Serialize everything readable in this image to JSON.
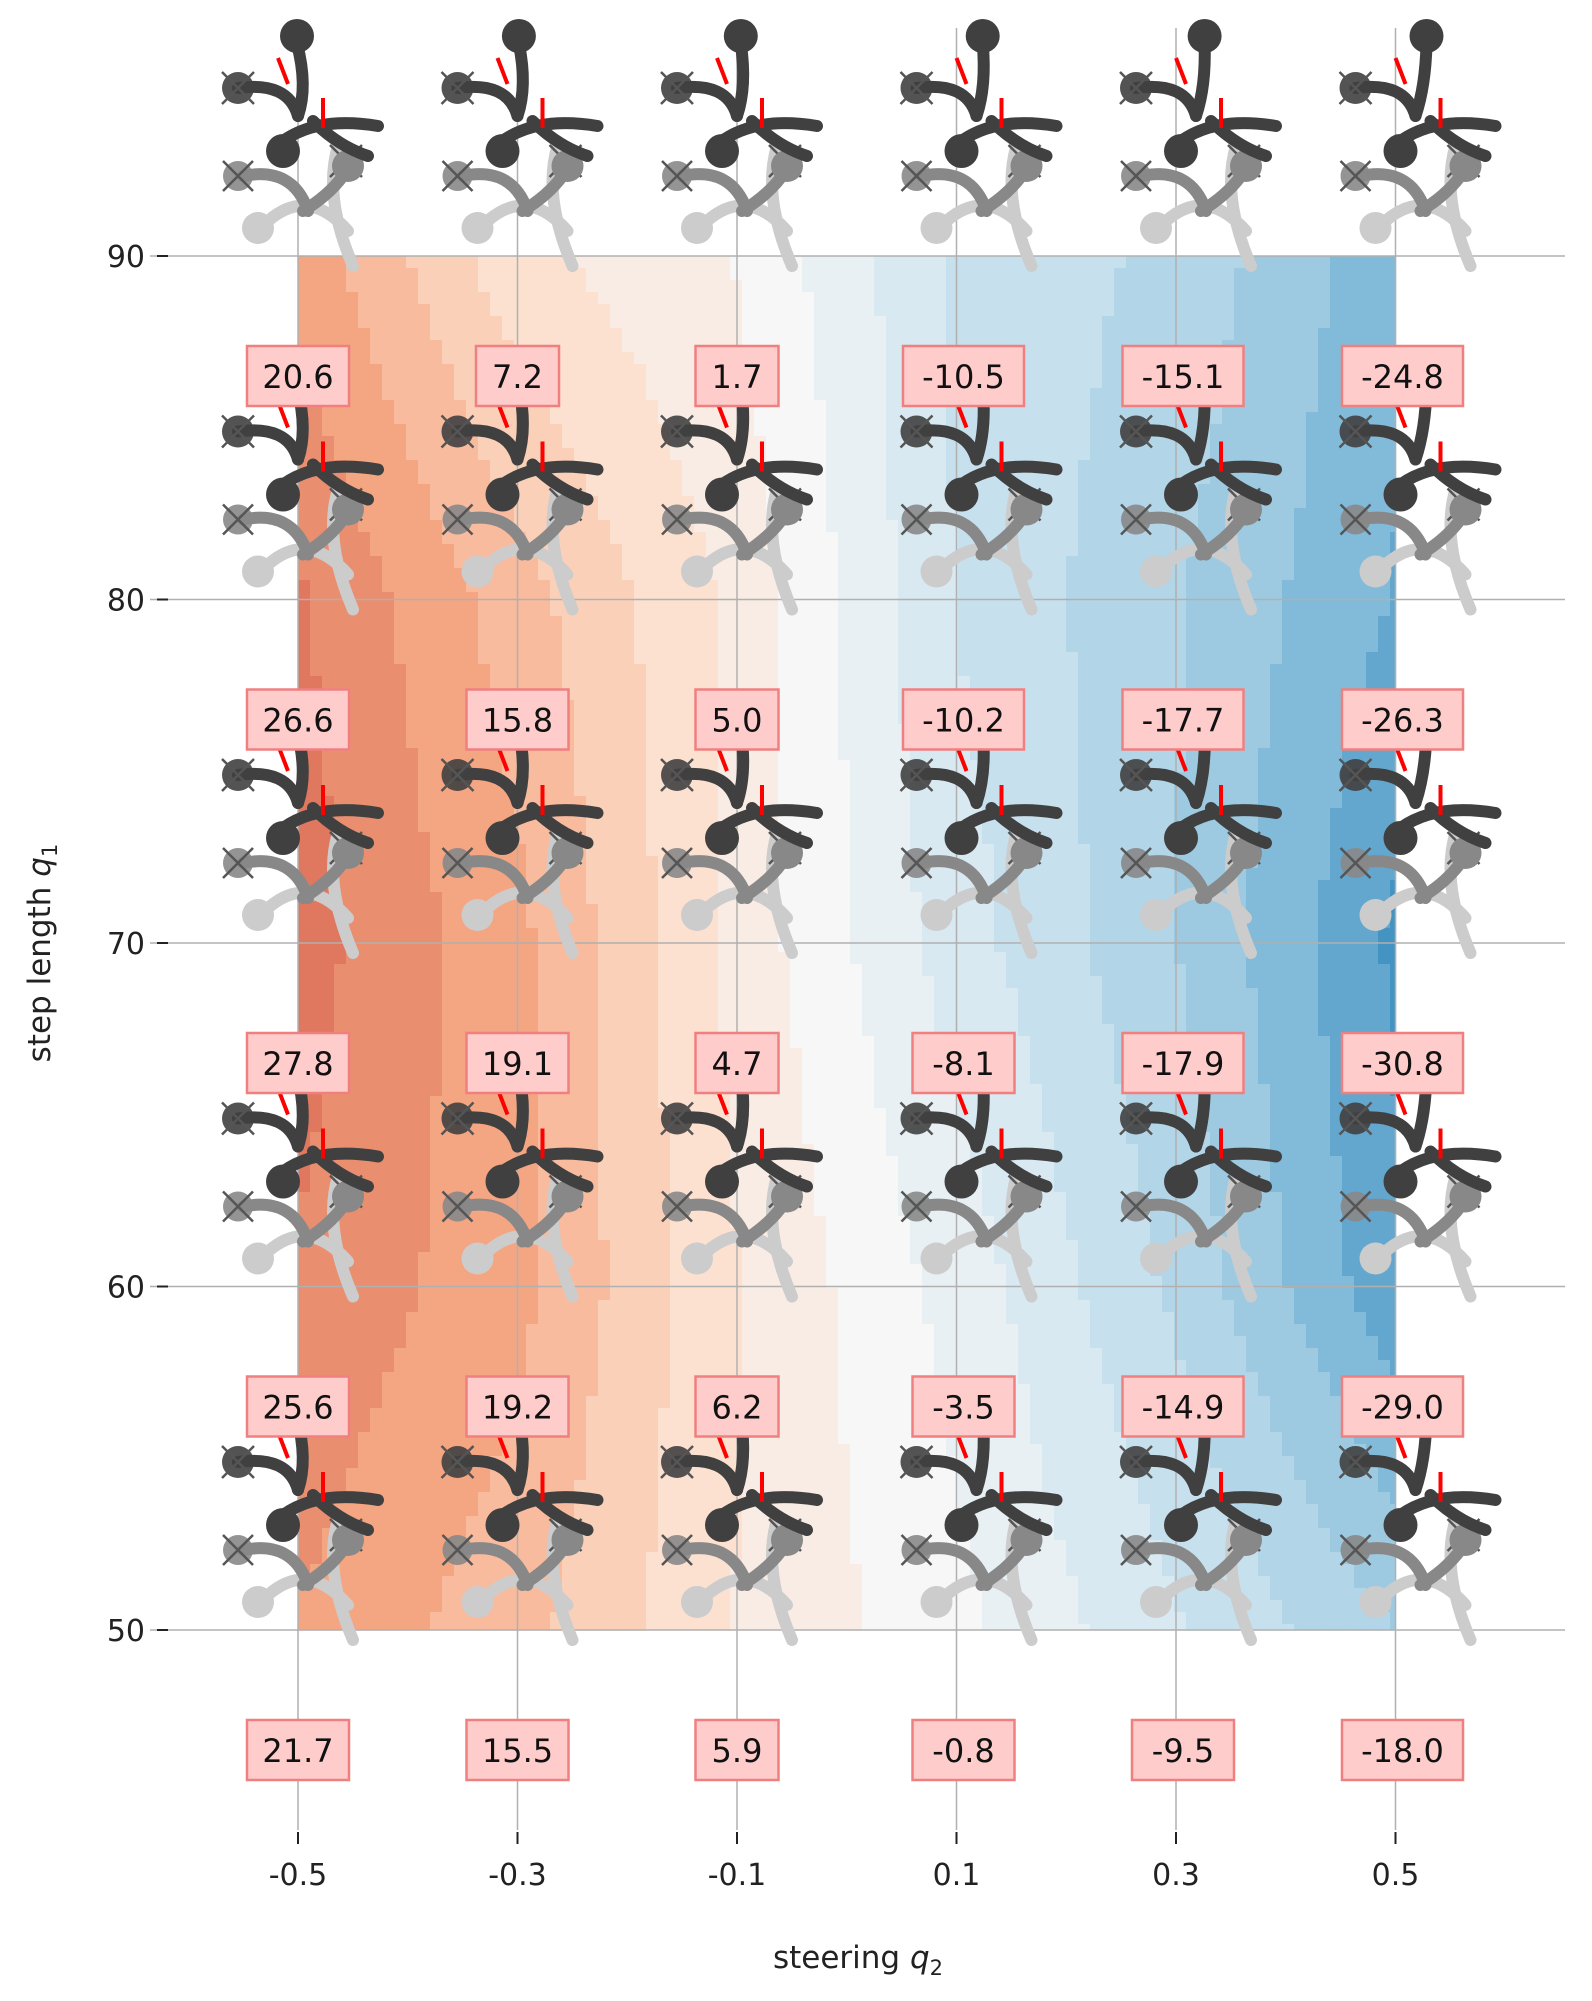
{
  "chart_data": {
    "type": "heatmap",
    "xlabel": "steering",
    "xlabel_var": "q",
    "xlabel_sub": "2",
    "ylabel": "step length",
    "ylabel_var": "q",
    "ylabel_sub": "1",
    "x": [
      -0.5,
      -0.3,
      -0.1,
      0.1,
      0.3,
      0.5
    ],
    "x_tick_labels": [
      "-0.5",
      "-0.3",
      "-0.1",
      "0.1",
      "0.3",
      "0.5"
    ],
    "y": [
      50,
      60,
      70,
      80,
      90
    ],
    "y_tick_labels": [
      "50",
      "60",
      "70",
      "80",
      "90"
    ],
    "values": [
      [
        21.7,
        15.5,
        5.9,
        -0.8,
        -9.5,
        -18.0
      ],
      [
        25.6,
        19.2,
        6.2,
        -3.5,
        -14.9,
        -29.0
      ],
      [
        27.8,
        19.1,
        4.7,
        -8.1,
        -17.9,
        -30.8
      ],
      [
        26.6,
        15.8,
        5.0,
        -10.2,
        -17.7,
        -26.3
      ],
      [
        20.6,
        7.2,
        1.7,
        -10.5,
        -15.1,
        -24.8
      ]
    ],
    "value_labels": [
      [
        "21.7",
        "15.5",
        "5.9",
        "-0.8",
        "-9.5",
        "-18.0"
      ],
      [
        "25.6",
        "19.2",
        "6.2",
        "-3.5",
        "-14.9",
        "-29.0"
      ],
      [
        "27.8",
        "19.1",
        "4.7",
        "-8.1",
        "-17.9",
        "-30.8"
      ],
      [
        "26.6",
        "15.8",
        "5.0",
        "-10.2",
        "-17.7",
        "-26.3"
      ],
      [
        "20.6",
        "7.2",
        "1.7",
        "-10.5",
        "-15.1",
        "-24.8"
      ]
    ],
    "colormap": "RdBu_r",
    "grid": true,
    "colors": {
      "label_box_fill": "#ffcccc",
      "label_box_edge": "#f08080",
      "figure_dark": "#404040",
      "figure_mid": "#888888",
      "figure_light": "#cccccc",
      "heading_marker": "#ff0000",
      "grid": "#b0b0b0"
    }
  }
}
